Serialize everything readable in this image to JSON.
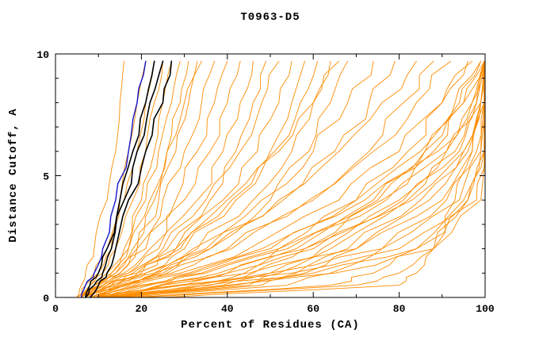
{
  "chart_data": {
    "type": "line",
    "title": "T0963-D5",
    "xlabel": "Percent of Residues (CA)",
    "ylabel": "Distance Cutoff, A",
    "xlim": [
      0,
      100
    ],
    "ylim": [
      0,
      10
    ],
    "x_ticks": [
      0,
      20,
      40,
      60,
      80,
      100
    ],
    "x_minor_step": 10,
    "y_ticks": [
      0,
      5,
      10
    ],
    "y_minor_step": 1,
    "legend": "none",
    "background": "#ffffff",
    "axis_color": "#000000",
    "anchor_y": [
      0,
      0.5,
      1,
      2,
      4,
      6,
      8,
      9.7
    ],
    "series_groups": [
      {
        "name": "predicted-models-orange",
        "color": "#ff8c00",
        "width": 0.9,
        "series": [
          [
            5,
            6,
            7,
            9,
            12,
            14,
            15,
            16
          ],
          [
            5,
            7,
            9,
            12,
            15,
            17,
            19,
            21
          ],
          [
            6,
            8,
            10,
            13,
            16,
            19,
            21,
            23
          ],
          [
            5,
            8,
            11,
            14,
            18,
            21,
            23,
            25
          ],
          [
            6,
            9,
            12,
            16,
            20,
            23,
            25,
            27
          ],
          [
            7,
            10,
            13,
            17,
            21,
            24,
            27,
            29
          ],
          [
            6,
            10,
            14,
            18,
            23,
            26,
            29,
            31
          ],
          [
            7,
            11,
            15,
            19,
            24,
            28,
            31,
            33
          ],
          [
            6,
            9,
            13,
            17,
            22,
            26,
            30,
            34
          ],
          [
            6,
            10,
            14,
            19,
            25,
            30,
            34,
            37
          ],
          [
            7,
            11,
            15,
            21,
            28,
            33,
            37,
            40
          ],
          [
            6,
            10,
            16,
            22,
            30,
            36,
            40,
            43
          ],
          [
            7,
            12,
            17,
            24,
            33,
            39,
            43,
            46
          ],
          [
            8,
            13,
            18,
            26,
            36,
            42,
            46,
            49
          ],
          [
            6,
            11,
            17,
            25,
            35,
            43,
            48,
            52
          ],
          [
            7,
            12,
            19,
            28,
            39,
            47,
            52,
            55
          ],
          [
            8,
            14,
            21,
            30,
            42,
            50,
            55,
            58
          ],
          [
            7,
            13,
            20,
            29,
            41,
            51,
            57,
            61
          ],
          [
            8,
            15,
            23,
            33,
            46,
            55,
            60,
            64
          ],
          [
            6,
            12,
            19,
            28,
            40,
            52,
            60,
            66
          ],
          [
            9,
            16,
            25,
            36,
            50,
            59,
            64,
            68
          ],
          [
            7,
            13,
            21,
            32,
            48,
            60,
            68,
            74
          ],
          [
            8,
            15,
            24,
            36,
            53,
            65,
            73,
            79
          ],
          [
            7,
            14,
            23,
            35,
            52,
            66,
            76,
            84
          ],
          [
            9,
            17,
            27,
            41,
            60,
            73,
            81,
            88
          ],
          [
            8,
            16,
            26,
            40,
            59,
            74,
            84,
            92
          ],
          [
            9,
            18,
            29,
            45,
            66,
            80,
            90,
            97
          ],
          [
            10,
            20,
            32,
            50,
            72,
            86,
            95,
            100
          ],
          [
            9,
            19,
            31,
            48,
            70,
            85,
            94,
            99
          ],
          [
            11,
            22,
            35,
            54,
            77,
            91,
            98,
            100
          ],
          [
            10,
            21,
            34,
            52,
            75,
            89,
            97,
            100
          ],
          [
            12,
            25,
            40,
            60,
            83,
            95,
            100,
            100
          ],
          [
            11,
            24,
            38,
            58,
            81,
            94,
            99,
            100
          ],
          [
            8,
            30,
            40,
            52,
            70,
            82,
            90,
            96
          ],
          [
            10,
            36,
            46,
            58,
            76,
            88,
            95,
            100
          ],
          [
            12,
            42,
            52,
            64,
            82,
            93,
            98,
            100
          ],
          [
            9,
            33,
            44,
            56,
            74,
            86,
            93,
            99
          ],
          [
            14,
            48,
            58,
            70,
            87,
            96,
            100,
            100
          ],
          [
            11,
            39,
            50,
            62,
            80,
            91,
            97,
            100
          ],
          [
            16,
            54,
            64,
            76,
            91,
            98,
            100,
            100
          ],
          [
            13,
            45,
            56,
            68,
            85,
            95,
            99,
            100
          ],
          [
            18,
            64,
            74,
            84,
            95,
            99,
            100,
            100
          ],
          [
            20,
            70,
            80,
            88,
            96,
            100,
            100,
            100
          ],
          [
            25,
            80,
            84,
            88,
            93,
            97,
            99,
            100
          ],
          [
            10,
            25,
            45,
            70,
            90,
            97,
            99,
            100
          ],
          [
            12,
            30,
            55,
            80,
            96,
            100,
            100,
            100
          ],
          [
            15,
            40,
            65,
            88,
            99,
            100,
            100,
            100
          ],
          [
            11,
            28,
            50,
            76,
            94,
            99,
            100,
            100
          ],
          [
            13,
            35,
            60,
            84,
            98,
            100,
            100,
            100
          ]
        ]
      },
      {
        "name": "reference-model-blue",
        "color": "#1414c8",
        "width": 1.4,
        "series": [
          [
            6,
            7,
            9,
            11,
            14,
            17,
            19,
            21
          ]
        ]
      },
      {
        "name": "reference-models-black",
        "color": "#000000",
        "width": 1.6,
        "series": [
          [
            7,
            8,
            10,
            12,
            15,
            18,
            21,
            23
          ],
          [
            7,
            9,
            11,
            13,
            16,
            19,
            22,
            25
          ],
          [
            8,
            10,
            12,
            14,
            17,
            21,
            25,
            27
          ]
        ]
      }
    ]
  }
}
